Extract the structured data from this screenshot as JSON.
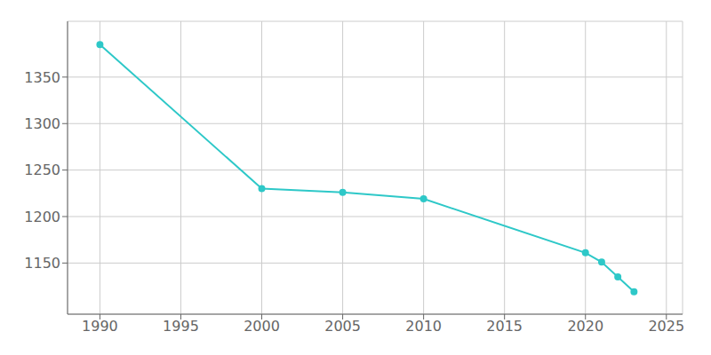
{
  "chart_data": {
    "type": "line",
    "x": [
      1990,
      2000,
      2005,
      2010,
      2020,
      2021,
      2022,
      2023
    ],
    "values": [
      1385,
      1230,
      1226,
      1219,
      1161,
      1151,
      1135,
      1119
    ],
    "color": "#2ec8c8",
    "xlim": [
      1988,
      2026
    ],
    "ylim": [
      1095,
      1410
    ],
    "xticks": [
      1990,
      1995,
      2000,
      2005,
      2010,
      2015,
      2020,
      2025
    ],
    "yticks": [
      1150,
      1200,
      1250,
      1300,
      1350
    ],
    "grid": true,
    "marker": "circle"
  }
}
